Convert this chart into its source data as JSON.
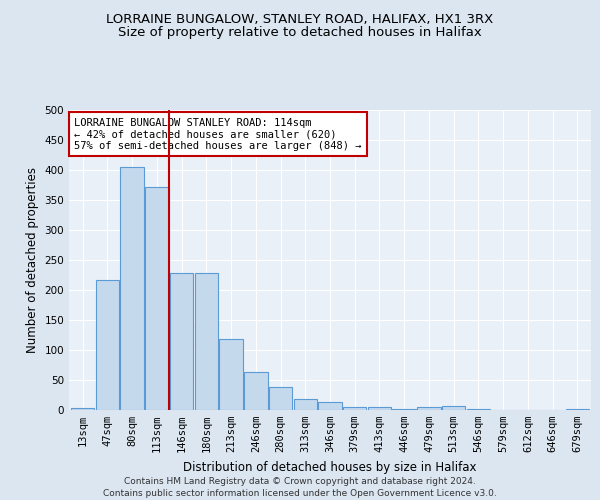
{
  "title": "LORRAINE BUNGALOW, STANLEY ROAD, HALIFAX, HX1 3RX",
  "subtitle": "Size of property relative to detached houses in Halifax",
  "xlabel": "Distribution of detached houses by size in Halifax",
  "ylabel": "Number of detached properties",
  "categories": [
    "13sqm",
    "47sqm",
    "80sqm",
    "113sqm",
    "146sqm",
    "180sqm",
    "213sqm",
    "246sqm",
    "280sqm",
    "313sqm",
    "346sqm",
    "379sqm",
    "413sqm",
    "446sqm",
    "479sqm",
    "513sqm",
    "546sqm",
    "579sqm",
    "612sqm",
    "646sqm",
    "679sqm"
  ],
  "values": [
    3,
    216,
    405,
    372,
    229,
    229,
    119,
    64,
    38,
    18,
    13,
    5,
    5,
    1,
    5,
    6,
    1,
    0,
    0,
    0,
    1
  ],
  "bar_color": "#c5d9ed",
  "bar_edge_color": "#5b9bd5",
  "vline_color": "#c00000",
  "annotation_text": "LORRAINE BUNGALOW STANLEY ROAD: 114sqm\n← 42% of detached houses are smaller (620)\n57% of semi-detached houses are larger (848) →",
  "annotation_box_facecolor": "#ffffff",
  "annotation_box_edgecolor": "#c00000",
  "ylim": [
    0,
    500
  ],
  "yticks": [
    0,
    50,
    100,
    150,
    200,
    250,
    300,
    350,
    400,
    450,
    500
  ],
  "bg_color": "#dce6f1",
  "plot_bg_color": "#e9f0f8",
  "grid_color": "#ffffff",
  "footer_line1": "Contains HM Land Registry data © Crown copyright and database right 2024.",
  "footer_line2": "Contains public sector information licensed under the Open Government Licence v3.0.",
  "title_fontsize": 9.5,
  "subtitle_fontsize": 9.5,
  "xlabel_fontsize": 8.5,
  "ylabel_fontsize": 8.5,
  "tick_fontsize": 7.5,
  "annotation_fontsize": 7.5,
  "footer_fontsize": 6.5
}
